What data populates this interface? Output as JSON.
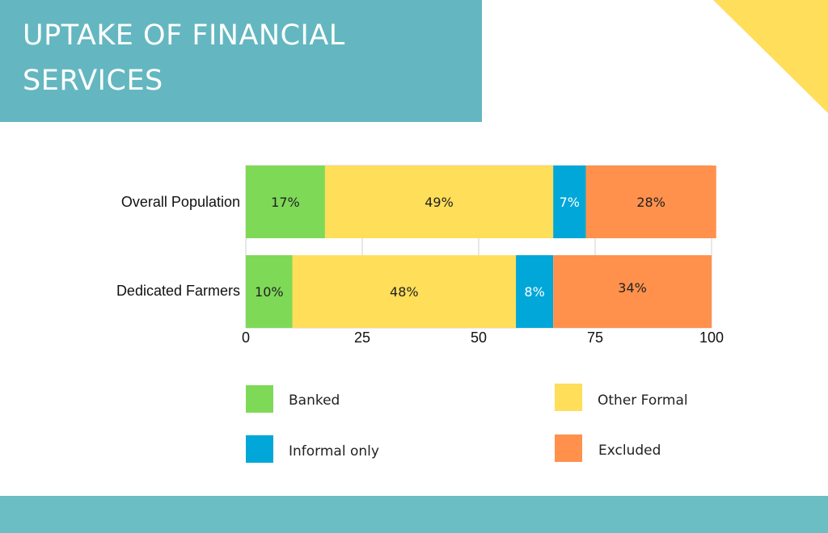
{
  "title": "UPTAKE OF FINANCIAL SERVICES",
  "colors": {
    "banner": "#64b7c0",
    "accent_triangle": "#ffde5c",
    "bottom_band": "#6bbec4",
    "banked": "#7ed957",
    "other_formal": "#ffde59",
    "informal_only": "#00a7d8",
    "excluded": "#ff914d"
  },
  "chart_data": {
    "type": "bar",
    "orientation": "horizontal",
    "stacked": true,
    "categories": [
      "Overall Population",
      "Dedicated Farmers"
    ],
    "series": [
      {
        "name": "Banked",
        "values": [
          17,
          10
        ],
        "labels": [
          "17%",
          "10%"
        ],
        "color": "#7ed957"
      },
      {
        "name": "Other Formal",
        "values": [
          49,
          48
        ],
        "labels": [
          "49%",
          "48%"
        ],
        "color": "#ffde59"
      },
      {
        "name": "Informal only",
        "values": [
          7,
          8
        ],
        "labels": [
          "7%",
          "8%"
        ],
        "color": "#00a7d8"
      },
      {
        "name": "Excluded",
        "values": [
          28,
          34
        ],
        "labels": [
          "28%",
          "34%"
        ],
        "color": "#ff914d"
      }
    ],
    "xlim": [
      0,
      100
    ],
    "xticks": [
      "0",
      "25",
      "50",
      "75",
      "100"
    ],
    "grid": true,
    "legend_position": "bottom"
  },
  "legend": {
    "banked": "Banked",
    "other_formal": "Other Formal",
    "informal_only": "Informal only",
    "excluded": "Excluded"
  }
}
